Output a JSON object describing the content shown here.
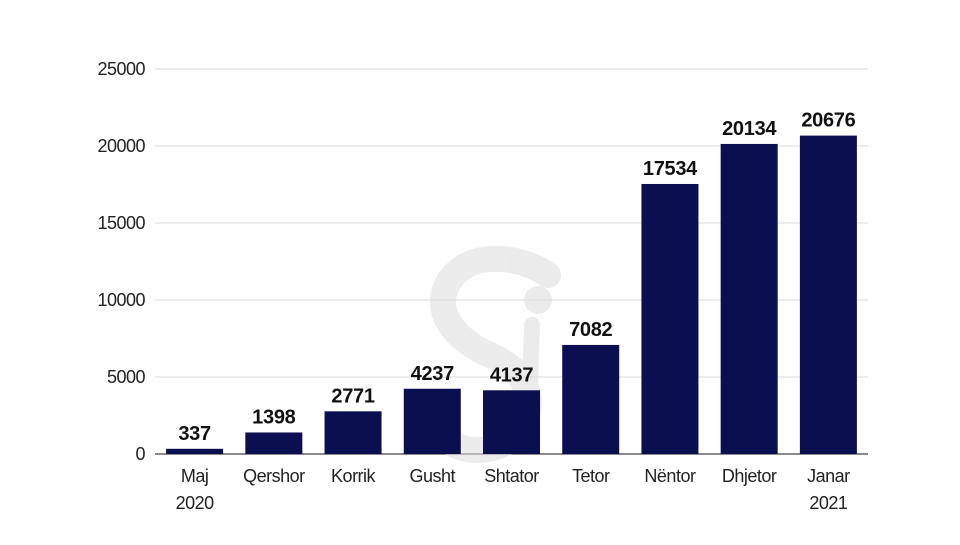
{
  "chart_data": {
    "type": "bar",
    "title": "",
    "xlabel": "",
    "ylabel": "",
    "categories": [
      [
        "Maj",
        "2020"
      ],
      [
        "Qershor"
      ],
      [
        "Korrik"
      ],
      [
        "Gusht"
      ],
      [
        "Shtator"
      ],
      [
        "Tetor"
      ],
      [
        "Nëntor"
      ],
      [
        "Dhjetor"
      ],
      [
        "Janar",
        "2021"
      ]
    ],
    "values": [
      337,
      1398,
      2771,
      4237,
      4137,
      7082,
      17534,
      20134,
      20676
    ],
    "ylim": [
      0,
      25000
    ],
    "yticks": [
      0,
      5000,
      10000,
      15000,
      20000,
      25000
    ],
    "grid": true,
    "data_labels": true,
    "colors": {
      "bar": "#0b0e4f",
      "grid": "#d9d9d9",
      "watermark": "#e6e6e6"
    }
  }
}
